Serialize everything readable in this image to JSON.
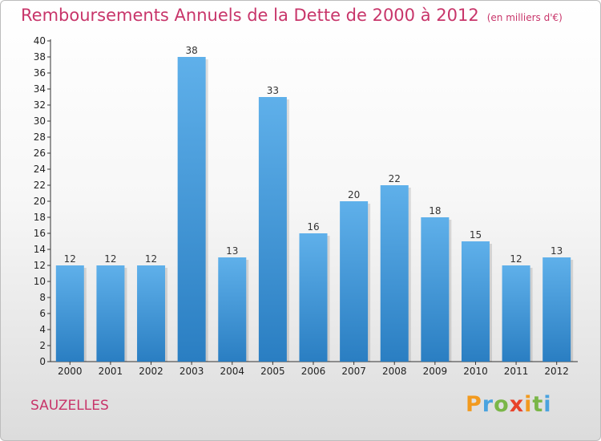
{
  "title": "Remboursements Annuels de la Dette de 2000 à 2012",
  "subtitle": "(en milliers d'€)",
  "place": "SAUZELLES",
  "logo": "Proxiti",
  "colors": {
    "title": "#c8356a",
    "bar_top": "#5fb0ea",
    "bar_bottom": "#2a7ec2",
    "logo": [
      "#f29a1f",
      "#4aa3df",
      "#7ab648",
      "#e8432b",
      "#f29a1f",
      "#7ab648",
      "#4aa3df"
    ]
  },
  "chart_data": {
    "type": "bar",
    "title": "Remboursements Annuels de la Dette de 2000 à 2012",
    "subtitle": "(en milliers d'€)",
    "categories": [
      "2000",
      "2001",
      "2002",
      "2003",
      "2004",
      "2005",
      "2006",
      "2007",
      "2008",
      "2009",
      "2010",
      "2011",
      "2012"
    ],
    "values": [
      12,
      12,
      12,
      38,
      13,
      33,
      16,
      20,
      22,
      18,
      15,
      12,
      13
    ],
    "data_labels": [
      "12",
      "12",
      "12",
      "38",
      "13",
      "33",
      "16",
      "20",
      "22",
      "18",
      "15",
      "12",
      "13"
    ],
    "ylim": [
      0,
      40
    ],
    "yticks": [
      "0",
      "2",
      "4",
      "6",
      "8",
      "10",
      "12",
      "14",
      "16",
      "18",
      "20",
      "22",
      "24",
      "26",
      "28",
      "30",
      "32",
      "34",
      "36",
      "38",
      "40"
    ],
    "grid": false,
    "legend": "none"
  }
}
